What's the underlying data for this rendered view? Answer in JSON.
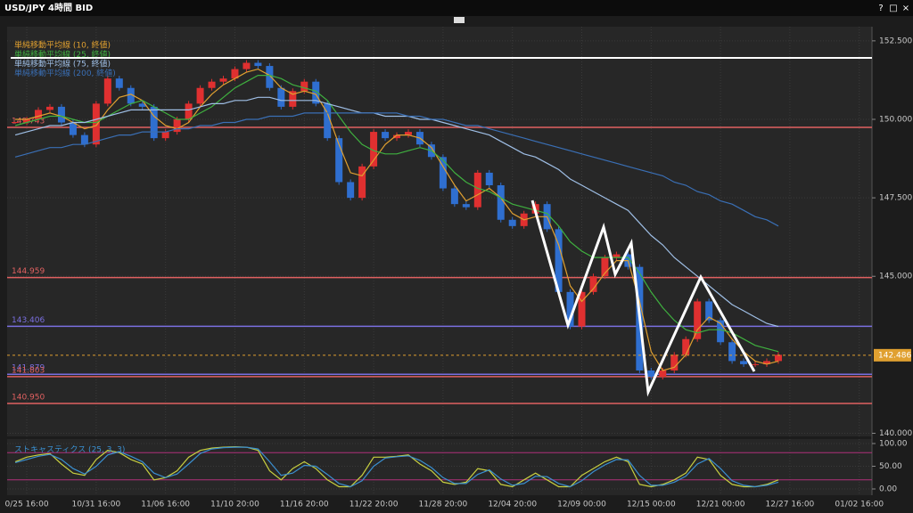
{
  "window": {
    "title": "USD/JPY 4時間 BID",
    "buttons": [
      "?",
      "□",
      "×"
    ]
  },
  "chart_data": [
    {
      "type": "candlestick",
      "up_color": "#e03030",
      "down_color": "#2f6fd0",
      "close": [
        149.9,
        150.0,
        150.3,
        150.4,
        149.9,
        149.5,
        149.2,
        150.5,
        151.3,
        151.0,
        150.5,
        150.4,
        149.4,
        149.6,
        150.0,
        150.5,
        151.0,
        151.2,
        151.3,
        151.6,
        151.8,
        151.7,
        151.0,
        150.4,
        150.9,
        151.2,
        150.5,
        149.4,
        148.0,
        147.5,
        148.5,
        149.6,
        149.4,
        149.5,
        149.6,
        149.2,
        148.8,
        147.8,
        147.3,
        147.2,
        148.3,
        147.9,
        146.8,
        146.6,
        147.0,
        147.3,
        146.5,
        144.5,
        143.4,
        144.5,
        145.0,
        145.6,
        145.7,
        145.3,
        142.0,
        141.8,
        142.0,
        142.5,
        143.0,
        144.2,
        143.6,
        142.9,
        142.3,
        142.2,
        142.2,
        142.3,
        142.5
      ],
      "series": [
        {
          "name": "単純移動平均線 (10, 終値)",
          "color": "#e0a030",
          "values": [
            150.0,
            150.0,
            150.1,
            150.2,
            150.1,
            149.9,
            149.7,
            149.8,
            150.3,
            150.7,
            150.8,
            150.6,
            150.1,
            149.8,
            149.7,
            149.9,
            150.4,
            150.8,
            151.1,
            151.3,
            151.5,
            151.6,
            151.4,
            151.0,
            150.8,
            150.9,
            150.8,
            150.2,
            149.2,
            148.3,
            148.2,
            148.7,
            149.2,
            149.5,
            149.5,
            149.4,
            149.1,
            148.5,
            147.9,
            147.4,
            147.6,
            147.8,
            147.5,
            147.0,
            146.8,
            146.9,
            146.9,
            146.0,
            144.7,
            144.2,
            144.6,
            145.1,
            145.5,
            145.5,
            144.2,
            142.6,
            142.0,
            142.1,
            142.5,
            143.3,
            143.7,
            143.5,
            143.0,
            142.6,
            142.3,
            142.2,
            142.3
          ]
        },
        {
          "name": "単純移動平均線 (25, 終値)",
          "color": "#3fb03f",
          "values": [
            149.8,
            149.9,
            150.0,
            150.1,
            150.1,
            150.0,
            149.9,
            149.9,
            150.1,
            150.3,
            150.5,
            150.6,
            150.4,
            150.2,
            150.0,
            150.0,
            150.2,
            150.4,
            150.7,
            151.0,
            151.2,
            151.4,
            151.4,
            151.3,
            151.1,
            151.0,
            150.9,
            150.6,
            150.1,
            149.6,
            149.2,
            149.0,
            148.9,
            148.9,
            149.0,
            149.1,
            149.0,
            148.7,
            148.3,
            148.0,
            147.8,
            147.7,
            147.5,
            147.3,
            147.2,
            147.1,
            147.0,
            146.6,
            146.1,
            145.8,
            145.6,
            145.6,
            145.6,
            145.6,
            145.1,
            144.5,
            144.0,
            143.6,
            143.3,
            143.2,
            143.3,
            143.3,
            143.2,
            143.0,
            142.8,
            142.7,
            142.6
          ]
        },
        {
          "name": "単純移動平均線 (75, 終値)",
          "color": "#9fbfe6",
          "values": [
            149.5,
            149.6,
            149.7,
            149.8,
            149.8,
            149.9,
            149.9,
            150.0,
            150.1,
            150.2,
            150.3,
            150.3,
            150.3,
            150.3,
            150.3,
            150.3,
            150.4,
            150.5,
            150.5,
            150.6,
            150.6,
            150.7,
            150.7,
            150.6,
            150.6,
            150.6,
            150.6,
            150.5,
            150.4,
            150.3,
            150.2,
            150.2,
            150.1,
            150.1,
            150.1,
            150.0,
            150.0,
            149.9,
            149.8,
            149.7,
            149.6,
            149.5,
            149.3,
            149.1,
            148.9,
            148.8,
            148.6,
            148.4,
            148.1,
            147.9,
            147.7,
            147.5,
            147.3,
            147.1,
            146.7,
            146.3,
            146.0,
            145.6,
            145.3,
            145.0,
            144.7,
            144.4,
            144.1,
            143.9,
            143.7,
            143.5,
            143.4
          ]
        },
        {
          "name": "単純移動平均線 (200, 終値)",
          "color": "#3a6fb5",
          "values": [
            148.8,
            148.9,
            149.0,
            149.1,
            149.1,
            149.2,
            149.2,
            149.3,
            149.4,
            149.5,
            149.5,
            149.6,
            149.6,
            149.6,
            149.7,
            149.7,
            149.8,
            149.8,
            149.9,
            149.9,
            150.0,
            150.0,
            150.1,
            150.1,
            150.1,
            150.2,
            150.2,
            150.2,
            150.2,
            150.2,
            150.2,
            150.2,
            150.2,
            150.2,
            150.1,
            150.1,
            150.0,
            150.0,
            149.9,
            149.8,
            149.8,
            149.7,
            149.6,
            149.5,
            149.4,
            149.3,
            149.2,
            149.1,
            149.0,
            148.9,
            148.8,
            148.7,
            148.6,
            148.5,
            148.4,
            148.3,
            148.2,
            148.0,
            147.9,
            147.7,
            147.6,
            147.4,
            147.3,
            147.1,
            146.9,
            146.8,
            146.6
          ]
        }
      ],
      "levels": [
        {
          "value": 149.743,
          "label": "149.743",
          "color": "#e06060"
        },
        {
          "value": 144.959,
          "label": "144.959",
          "color": "#e06060"
        },
        {
          "value": 143.406,
          "label": "143.406",
          "color": "#7a6fe0"
        },
        {
          "value": 141.879,
          "label": "141.879",
          "color": "#7a6fe0"
        },
        {
          "value": 141.803,
          "label": "141.803",
          "color": "#e06060"
        },
        {
          "value": 140.95,
          "label": "140.950",
          "color": "#e06060"
        }
      ],
      "current": {
        "value": 142.486,
        "label": "142.486",
        "color": "#e0a030"
      },
      "xlim": [
        -0.7,
        74.1
      ],
      "ylim": [
        139.9,
        152.95
      ],
      "yticks": [
        {
          "value": 152.5,
          "label": "152.500"
        },
        {
          "value": 150,
          "label": "150.000"
        },
        {
          "value": 147.5,
          "label": "147.500"
        },
        {
          "value": 145,
          "label": "145.000"
        },
        {
          "value": 140,
          "label": "140.000"
        }
      ],
      "xticks": [
        {
          "value": 1,
          "label": "0/25 16:00"
        },
        {
          "value": 7,
          "label": "10/31 16:00"
        },
        {
          "value": 13,
          "label": "11/06 16:00"
        },
        {
          "value": 19,
          "label": "11/10 20:00"
        },
        {
          "value": 25,
          "label": "11/16 20:00"
        },
        {
          "value": 31,
          "label": "11/22 20:00"
        },
        {
          "value": 37,
          "label": "11/28 20:00"
        },
        {
          "value": 43,
          "label": "12/04 20:00"
        },
        {
          "value": 49,
          "label": "12/09 00:00"
        },
        {
          "value": 55,
          "label": "12/15 00:00"
        },
        {
          "value": 61,
          "label": "12/21 00:00"
        },
        {
          "value": 67,
          "label": "12/27 16:00"
        },
        {
          "value": 73,
          "label": "01/02 16:00"
        }
      ]
    },
    {
      "type": "line",
      "title": "ストキャスティクス (25, 3, 3)",
      "series": [
        {
          "color": "#c8d040",
          "values": [
            60,
            70,
            75,
            78,
            55,
            35,
            30,
            65,
            85,
            80,
            65,
            55,
            20,
            25,
            40,
            70,
            85,
            90,
            92,
            93,
            92,
            85,
            40,
            20,
            45,
            60,
            45,
            20,
            5,
            5,
            30,
            70,
            70,
            72,
            75,
            55,
            40,
            15,
            10,
            15,
            45,
            40,
            10,
            5,
            20,
            35,
            20,
            5,
            5,
            30,
            45,
            60,
            70,
            60,
            10,
            5,
            10,
            20,
            35,
            70,
            65,
            30,
            10,
            5,
            5,
            10,
            20
          ]
        },
        {
          "color": "#3a8fd0",
          "values": [
            58,
            65,
            72,
            76,
            65,
            45,
            33,
            50,
            75,
            82,
            72,
            60,
            35,
            25,
            33,
            55,
            78,
            88,
            91,
            92,
            92,
            88,
            60,
            30,
            35,
            52,
            50,
            32,
            12,
            5,
            18,
            50,
            68,
            71,
            73,
            63,
            47,
            25,
            12,
            12,
            32,
            42,
            22,
            8,
            12,
            28,
            27,
            12,
            5,
            18,
            38,
            53,
            65,
            64,
            30,
            8,
            8,
            15,
            28,
            55,
            67,
            45,
            18,
            8,
            5,
            8,
            15
          ]
        }
      ],
      "levels": [
        {
          "value": 80,
          "color": "#b0307a"
        },
        {
          "value": 20,
          "color": "#b0307a"
        }
      ],
      "xlim": [
        -0.7,
        74.1
      ],
      "ylim": [
        -13.7,
        109.8
      ],
      "yticks": [
        {
          "value": 100,
          "label": "100.00"
        },
        {
          "value": 50,
          "label": "50.00"
        },
        {
          "value": 0,
          "label": "0.00"
        }
      ]
    }
  ]
}
